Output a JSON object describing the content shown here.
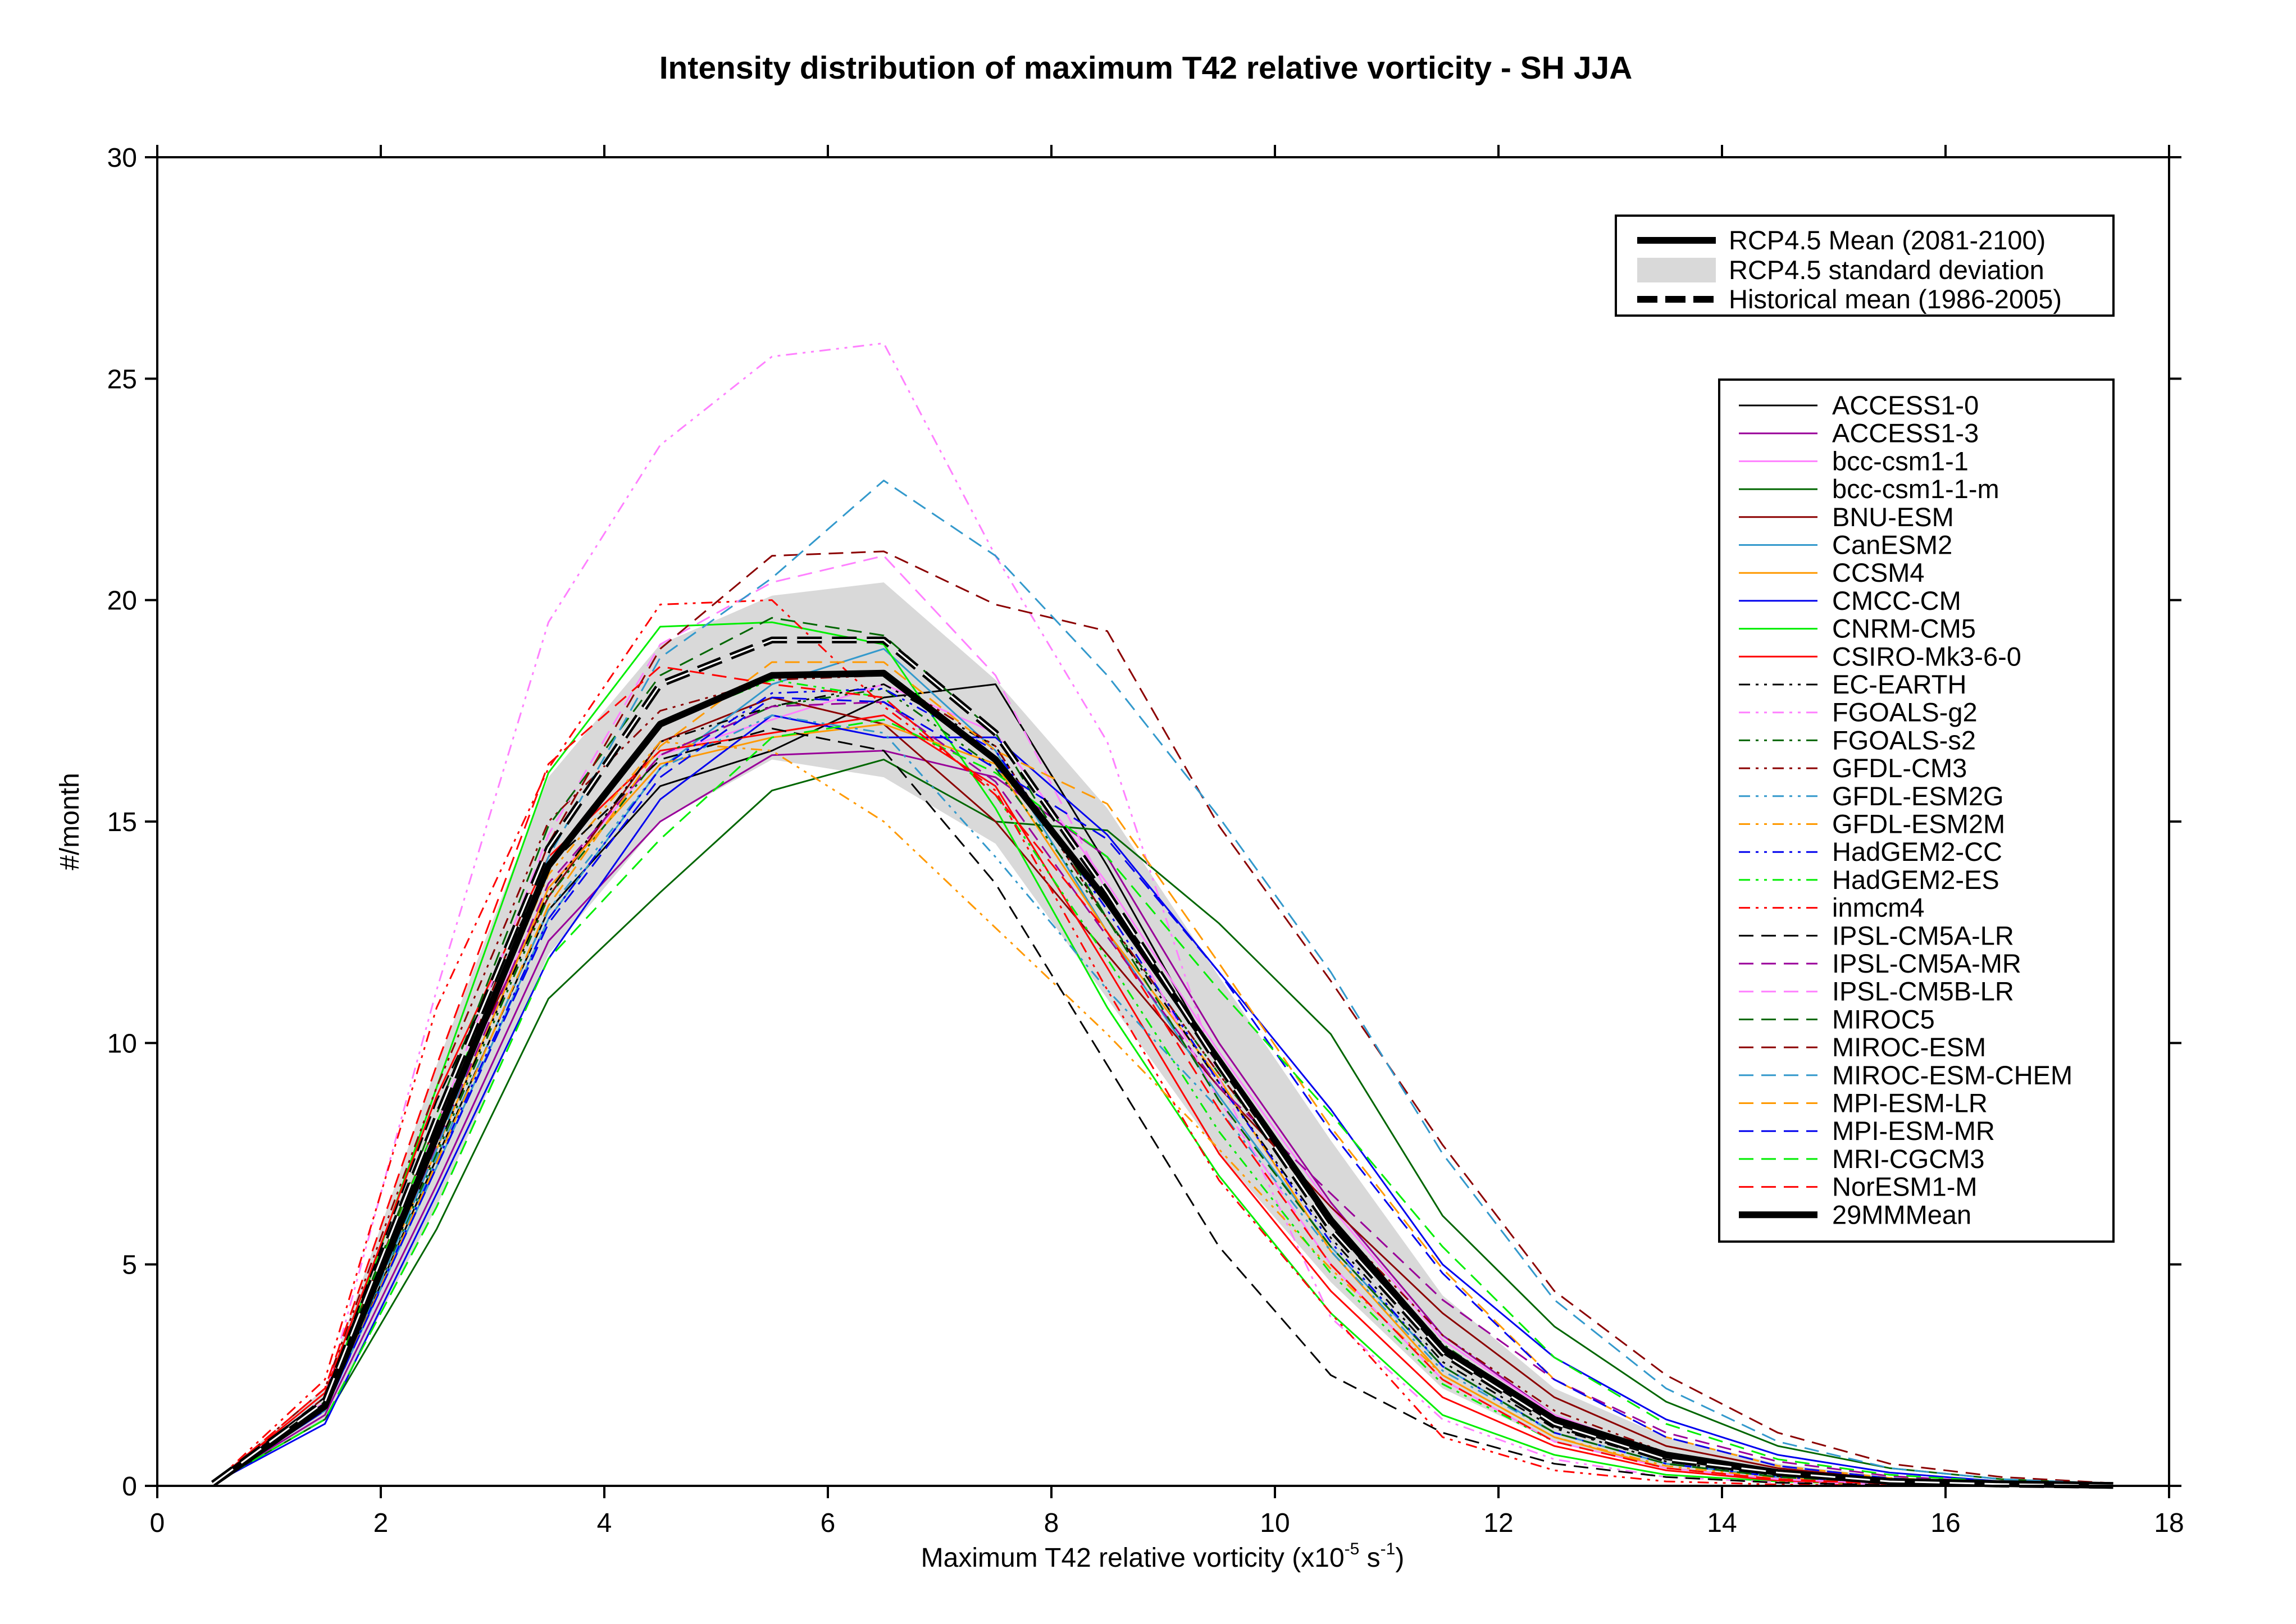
{
  "chart_data": {
    "type": "line",
    "title": "Intensity distribution of maximum T42 relative vorticity - SH JJA",
    "xlabel": "Maximum T42 relative vorticity (x10",
    "xlabel_exp": "-5",
    "xlabel_unit": " s",
    "xlabel_unit_exp": "-1",
    "xlabel_close": ")",
    "ylabel": "#/month",
    "xlim": [
      0,
      18
    ],
    "ylim": [
      0,
      30
    ],
    "xticks": [
      0,
      2,
      4,
      6,
      8,
      10,
      12,
      14,
      16,
      18
    ],
    "yticks": [
      0,
      5,
      10,
      15,
      20,
      25,
      30
    ],
    "x": [
      0.5,
      1.5,
      2.5,
      3.5,
      4.5,
      5.5,
      6.5,
      7.5,
      8.5,
      9.5,
      10.5,
      11.5,
      12.5,
      13.5,
      14.5,
      15.5,
      16.5,
      17.5
    ],
    "legend_top": {
      "placement": "top-right",
      "entries": [
        "RCP4.5 Mean (2081-2100)",
        "RCP4.5 standard deviation",
        "Historical mean (1986-2005)"
      ]
    },
    "std_band": {
      "name": "RCP4.5 standard deviation",
      "color": "#d9d9d9",
      "upper": [
        0.1,
        2.2,
        9.5,
        16.0,
        19.0,
        20.1,
        20.4,
        18.2,
        15.3,
        11.5,
        7.8,
        4.3,
        2.2,
        1.1,
        0.5,
        0.2,
        0.1,
        0.03
      ],
      "lower": [
        0.05,
        1.5,
        6.3,
        12.0,
        15.0,
        16.4,
        16.0,
        14.5,
        11.0,
        7.5,
        4.6,
        2.2,
        1.0,
        0.4,
        0.15,
        0.05,
        0.02,
        0.0
      ]
    },
    "mean_rcp": {
      "name": "RCP4.5 Mean (2081-2100)",
      "values": [
        0.05,
        1.8,
        7.9,
        14.0,
        17.2,
        18.3,
        18.35,
        16.4,
        13.2,
        9.6,
        6.0,
        3.1,
        1.5,
        0.7,
        0.3,
        0.1,
        0.05,
        0.01
      ]
    },
    "mean_hist": {
      "name": "Historical mean (1986-2005)",
      "values": [
        0.05,
        1.9,
        8.3,
        14.4,
        18.1,
        19.1,
        19.1,
        17.0,
        13.4,
        9.5,
        5.8,
        3.0,
        1.4,
        0.6,
        0.3,
        0.1,
        0.04,
        0.01
      ]
    },
    "series": [
      {
        "name": "ACCESS1-0",
        "color": "#000000",
        "dash": "solid",
        "values": [
          0.05,
          1.7,
          7.4,
          13.0,
          15.8,
          16.6,
          17.8,
          18.1,
          14.0,
          9.5,
          5.9,
          3.0,
          1.4,
          0.6,
          0.25,
          0.1,
          0.04,
          0.01
        ]
      },
      {
        "name": "ACCESS1-3",
        "color": "#990099",
        "dash": "solid",
        "values": [
          0.05,
          1.6,
          6.8,
          12.3,
          15.0,
          16.5,
          16.6,
          16.0,
          14.2,
          10.0,
          6.4,
          3.4,
          1.6,
          0.7,
          0.3,
          0.12,
          0.05,
          0.01
        ]
      },
      {
        "name": "bcc-csm1-1",
        "color": "#ff80ff",
        "dash": "solid",
        "values": [
          0.05,
          1.9,
          8.0,
          13.5,
          16.5,
          17.3,
          18.1,
          17.0,
          13.6,
          9.8,
          6.3,
          3.3,
          1.6,
          0.7,
          0.3,
          0.12,
          0.05,
          0.01
        ]
      },
      {
        "name": "bcc-csm1-1-m",
        "color": "#006600",
        "dash": "solid",
        "values": [
          0.05,
          1.5,
          5.8,
          11.0,
          13.4,
          15.7,
          16.4,
          15.0,
          14.8,
          12.7,
          10.2,
          6.1,
          3.6,
          1.9,
          0.9,
          0.4,
          0.15,
          0.05
        ]
      },
      {
        "name": "BNU-ESM",
        "color": "#8b0000",
        "dash": "solid",
        "values": [
          0.05,
          2.0,
          8.2,
          13.3,
          16.8,
          17.8,
          17.2,
          15.0,
          12.0,
          9.0,
          6.3,
          3.9,
          2.0,
          0.9,
          0.4,
          0.15,
          0.06,
          0.02
        ]
      },
      {
        "name": "CanESM2",
        "color": "#3399cc",
        "dash": "solid",
        "values": [
          0.05,
          1.7,
          7.2,
          12.8,
          16.2,
          18.1,
          18.9,
          16.6,
          12.5,
          8.8,
          5.4,
          2.7,
          1.2,
          0.5,
          0.2,
          0.08,
          0.03,
          0.01
        ]
      },
      {
        "name": "CCSM4",
        "color": "#ff9900",
        "dash": "solid",
        "values": [
          0.05,
          1.8,
          7.6,
          13.5,
          16.3,
          16.9,
          17.2,
          16.3,
          12.5,
          9.2,
          5.3,
          2.5,
          1.1,
          0.4,
          0.15,
          0.05,
          0.02,
          0.0
        ]
      },
      {
        "name": "CMCC-CM",
        "color": "#0000ee",
        "dash": "solid",
        "values": [
          0.05,
          1.4,
          6.6,
          11.9,
          15.5,
          17.4,
          16.9,
          16.9,
          14.7,
          11.6,
          8.5,
          5.0,
          2.9,
          1.5,
          0.7,
          0.3,
          0.1,
          0.03
        ]
      },
      {
        "name": "CNRM-CM5",
        "color": "#00ee00",
        "dash": "solid",
        "values": [
          0.05,
          1.8,
          9.0,
          16.1,
          19.4,
          19.5,
          19.0,
          15.3,
          10.8,
          7.0,
          3.9,
          1.6,
          0.7,
          0.25,
          0.1,
          0.03,
          0.01,
          0.0
        ]
      },
      {
        "name": "CSIRO-Mk3-6-0",
        "color": "#ff0000",
        "dash": "solid",
        "values": [
          0.05,
          2.1,
          8.8,
          14.2,
          16.6,
          17.0,
          17.4,
          15.8,
          11.7,
          7.5,
          4.4,
          2.0,
          0.9,
          0.35,
          0.12,
          0.04,
          0.01,
          0.0
        ]
      },
      {
        "name": "EC-EARTH",
        "color": "#000000",
        "dash": "dashdotdot",
        "values": [
          0.05,
          1.8,
          7.6,
          13.4,
          16.8,
          17.6,
          18.1,
          16.7,
          12.8,
          9.1,
          5.6,
          2.8,
          1.3,
          0.55,
          0.22,
          0.08,
          0.03,
          0.01
        ]
      },
      {
        "name": "FGOALS-g2",
        "color": "#ff80ff",
        "dash": "dashdotdot",
        "values": [
          0.05,
          2.0,
          11.2,
          19.5,
          23.5,
          25.5,
          25.8,
          21.0,
          16.8,
          9.2,
          3.8,
          1.5,
          0.6,
          0.2,
          0.08,
          0.03,
          0.01,
          0.0
        ]
      },
      {
        "name": "FGOALS-s2",
        "color": "#006600",
        "dash": "dashdotdot",
        "values": [
          0.05,
          1.7,
          7.5,
          13.3,
          16.5,
          17.6,
          18.0,
          16.2,
          12.8,
          9.3,
          6.0,
          3.2,
          1.5,
          0.65,
          0.25,
          0.1,
          0.03,
          0.01
        ]
      },
      {
        "name": "GFDL-CM3",
        "color": "#8b0000",
        "dash": "dashdotdot",
        "values": [
          0.05,
          2.2,
          9.0,
          15.0,
          17.5,
          18.2,
          18.3,
          16.7,
          12.8,
          9.3,
          6.0,
          3.4,
          1.7,
          0.75,
          0.3,
          0.12,
          0.04,
          0.01
        ]
      },
      {
        "name": "GFDL-ESM2G",
        "color": "#3399cc",
        "dash": "dashdotdot",
        "values": [
          0.05,
          1.7,
          7.4,
          13.0,
          16.2,
          17.4,
          17.0,
          14.2,
          11.2,
          8.5,
          5.3,
          2.6,
          1.2,
          0.5,
          0.2,
          0.08,
          0.03,
          0.01
        ]
      },
      {
        "name": "GFDL-ESM2M",
        "color": "#ff9900",
        "dash": "dashdotdot",
        "values": [
          0.05,
          1.8,
          7.9,
          13.8,
          16.8,
          16.6,
          15.0,
          12.6,
          10.2,
          7.6,
          4.9,
          2.5,
          1.1,
          0.45,
          0.18,
          0.06,
          0.02,
          0.01
        ]
      },
      {
        "name": "HadGEM2-CC",
        "color": "#0000ee",
        "dash": "dashdotdot",
        "values": [
          0.05,
          1.7,
          7.3,
          12.8,
          16.2,
          17.9,
          18.0,
          16.6,
          13.0,
          9.1,
          5.5,
          2.7,
          1.2,
          0.5,
          0.2,
          0.08,
          0.03,
          0.01
        ]
      },
      {
        "name": "HadGEM2-ES",
        "color": "#00ee00",
        "dash": "dashdotdot",
        "values": [
          0.05,
          1.9,
          8.2,
          13.9,
          17.2,
          18.2,
          17.8,
          15.6,
          11.9,
          8.0,
          4.8,
          2.3,
          1.0,
          0.4,
          0.15,
          0.05,
          0.02,
          0.0
        ]
      },
      {
        "name": "inmcm4",
        "color": "#ff0000",
        "dash": "dashdotdot",
        "values": [
          0.05,
          2.4,
          10.8,
          16.2,
          19.9,
          20.0,
          17.6,
          15.7,
          11.2,
          6.9,
          3.9,
          1.1,
          0.35,
          0.1,
          0.03,
          0.01,
          0.0,
          0.0
        ]
      },
      {
        "name": "IPSL-CM5A-LR",
        "color": "#000000",
        "dash": "dash",
        "values": [
          0.05,
          2.0,
          8.7,
          14.0,
          16.4,
          17.1,
          16.6,
          13.6,
          9.5,
          5.4,
          2.5,
          1.2,
          0.5,
          0.2,
          0.07,
          0.02,
          0.01,
          0.0
        ]
      },
      {
        "name": "IPSL-CM5A-MR",
        "color": "#990099",
        "dash": "dash",
        "values": [
          0.05,
          1.8,
          7.7,
          13.6,
          16.5,
          17.6,
          17.7,
          15.9,
          12.4,
          9.0,
          6.6,
          4.2,
          2.4,
          1.2,
          0.55,
          0.22,
          0.08,
          0.02
        ]
      },
      {
        "name": "IPSL-CM5B-LR",
        "color": "#ff80ff",
        "dash": "dash",
        "values": [
          0.05,
          1.9,
          8.1,
          14.7,
          19.0,
          20.4,
          21.0,
          18.3,
          13.4,
          8.7,
          5.0,
          2.4,
          1.0,
          0.4,
          0.15,
          0.05,
          0.02,
          0.0
        ]
      },
      {
        "name": "MIROC5",
        "color": "#006600",
        "dash": "dash",
        "values": [
          0.05,
          1.9,
          8.4,
          14.9,
          18.3,
          19.6,
          19.2,
          17.0,
          12.8,
          8.7,
          5.4,
          2.7,
          1.2,
          0.5,
          0.2,
          0.07,
          0.02,
          0.01
        ]
      },
      {
        "name": "MIROC-ESM",
        "color": "#8b0000",
        "dash": "dash",
        "values": [
          0.05,
          1.8,
          7.9,
          14.5,
          18.9,
          21.0,
          21.1,
          19.9,
          19.3,
          14.9,
          11.4,
          7.7,
          4.4,
          2.5,
          1.2,
          0.5,
          0.2,
          0.06
        ]
      },
      {
        "name": "MIROC-ESM-CHEM",
        "color": "#3399cc",
        "dash": "dash",
        "values": [
          0.05,
          1.7,
          7.6,
          14.2,
          18.7,
          20.5,
          22.7,
          21.0,
          18.3,
          15.1,
          11.6,
          7.5,
          4.2,
          2.2,
          1.0,
          0.4,
          0.15,
          0.05
        ]
      },
      {
        "name": "MPI-ESM-LR",
        "color": "#ff9900",
        "dash": "dash",
        "values": [
          0.05,
          1.7,
          7.3,
          13.1,
          16.7,
          18.6,
          18.6,
          16.6,
          15.4,
          11.8,
          8.1,
          4.9,
          2.4,
          1.1,
          0.45,
          0.18,
          0.06,
          0.02
        ]
      },
      {
        "name": "MPI-ESM-MR",
        "color": "#0000ee",
        "dash": "dash",
        "values": [
          0.05,
          1.7,
          7.2,
          12.7,
          16.0,
          17.8,
          17.7,
          16.2,
          14.6,
          11.6,
          8.0,
          4.8,
          2.4,
          1.1,
          0.45,
          0.17,
          0.06,
          0.02
        ]
      },
      {
        "name": "MRI-CGCM3",
        "color": "#00ee00",
        "dash": "dash",
        "values": [
          0.05,
          1.5,
          6.3,
          11.9,
          14.6,
          16.9,
          17.3,
          16.1,
          14.2,
          11.2,
          8.4,
          5.4,
          2.9,
          1.4,
          0.6,
          0.25,
          0.09,
          0.03
        ]
      },
      {
        "name": "NorESM1-M",
        "color": "#ff0000",
        "dash": "dash",
        "values": [
          0.05,
          2.2,
          9.5,
          16.3,
          18.5,
          18.1,
          17.8,
          15.6,
          12.5,
          8.5,
          5.0,
          2.4,
          1.0,
          0.4,
          0.15,
          0.05,
          0.02,
          0.0
        ]
      },
      {
        "name": "29MMMean",
        "color": "#000000",
        "dash": "thick",
        "values": [
          0.05,
          1.8,
          7.9,
          14.0,
          17.2,
          18.3,
          18.35,
          16.4,
          13.2,
          9.6,
          6.0,
          3.1,
          1.5,
          0.7,
          0.3,
          0.1,
          0.05,
          0.01
        ]
      }
    ]
  }
}
